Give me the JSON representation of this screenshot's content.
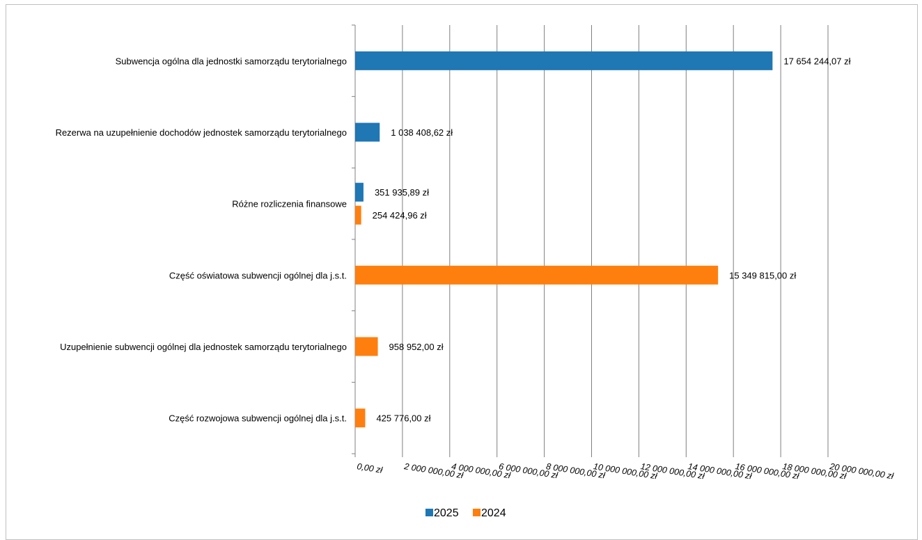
{
  "colors": {
    "2025": "#1f77b4",
    "2024": "#ff7f0e",
    "grid": "#7f7f7f"
  },
  "chart_data": {
    "type": "bar",
    "orientation": "horizontal",
    "title": "",
    "xlabel": "",
    "ylabel": "",
    "xlim": [
      0,
      20000000
    ],
    "x_ticks": [
      0,
      2000000,
      4000000,
      6000000,
      8000000,
      10000000,
      12000000,
      14000000,
      16000000,
      18000000,
      20000000
    ],
    "x_tick_labels": [
      "0,00 zł",
      "2 000 000,00 zł",
      "4 000 000,00 zł",
      "6 000 000,00 zł",
      "8 000 000,00 zł",
      "10 000 000,00 zł",
      "12 000 000,00 zł",
      "14 000 000,00 zł",
      "16 000 000,00 zł",
      "18 000 000,00 zł",
      "20 000 000,00 zł"
    ],
    "grid": true,
    "legend_position": "bottom",
    "categories": [
      "Subwencja ogólna dla jednostki samorządu terytorialnego",
      "Rezerwa na uzupełnienie dochodów jednostek samorządu terytorialnego",
      "Różne rozliczenia finansowe",
      "Część oświatowa subwencji ogólnej dla j.s.t.",
      "Uzupełnienie subwencji ogólnej dla jednostek samorządu terytorialnego",
      "Część rozwojowa subwencji ogólnej dla j.s.t."
    ],
    "series": [
      {
        "name": "2025",
        "values": [
          17654244.07,
          1038408.62,
          351935.89,
          null,
          null,
          null
        ],
        "labels": [
          "17 654 244,07 zł",
          "1 038 408,62 zł",
          "351 935,89 zł",
          "",
          "",
          ""
        ]
      },
      {
        "name": "2024",
        "values": [
          null,
          null,
          254424.96,
          15349815.0,
          958952.0,
          425776.0
        ],
        "labels": [
          "",
          "",
          "254 424,96 zł",
          "15 349 815,00 zł",
          "958 952,00 zł",
          "425 776,00 zł"
        ]
      }
    ]
  }
}
